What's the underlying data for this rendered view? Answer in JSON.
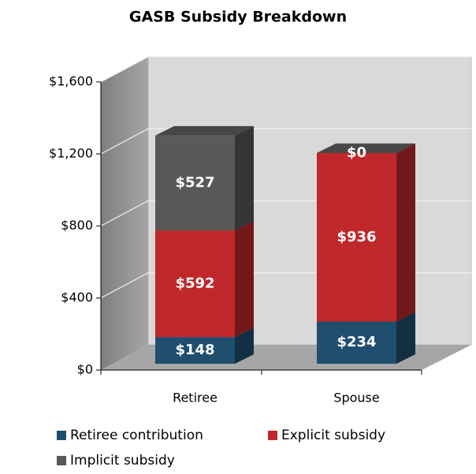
{
  "chart_data": {
    "type": "bar",
    "stacked": true,
    "title": "GASB Subsidy Breakdown",
    "categories": [
      "Retiree",
      "Spouse"
    ],
    "series": [
      {
        "name": "Retiree contribution",
        "color": "#1f4e6e",
        "values": [
          148,
          234
        ],
        "value_labels": [
          "$148",
          "$234"
        ]
      },
      {
        "name": "Explicit subsidy",
        "color": "#c0282b",
        "values": [
          592,
          936
        ],
        "value_labels": [
          "$592",
          "$936"
        ]
      },
      {
        "name": "Implicit subsidy",
        "color": "#595959",
        "values": [
          527,
          0
        ],
        "value_labels": [
          "$527",
          "$0"
        ]
      }
    ],
    "ylim": [
      0,
      1600
    ],
    "yticks": [
      {
        "value": 0,
        "label": "$0"
      },
      {
        "value": 400,
        "label": "$400"
      },
      {
        "value": 800,
        "label": "$800"
      },
      {
        "value": 1200,
        "label": "$1,200"
      },
      {
        "value": 1600,
        "label": "$1,600"
      }
    ],
    "grid": true
  }
}
